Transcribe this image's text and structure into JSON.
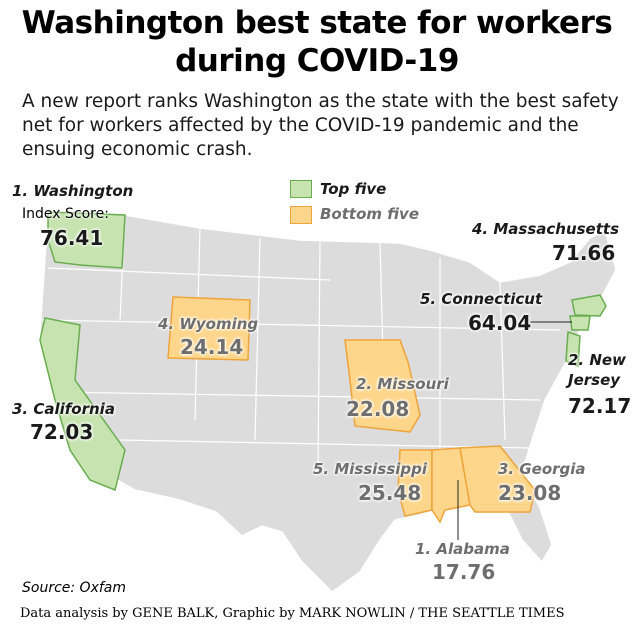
{
  "header": {
    "title": "Washington best state for workers during COVID-19",
    "subtitle": "A new report ranks Washington as the state with the best safety net for workers affected by the COVID-19 pandemic and the ensuing economic crash."
  },
  "legend": [
    {
      "label": "Top five",
      "color": "#c6e3b0",
      "stroke": "#6aad4f",
      "text_color": "#1a1a1a",
      "states": [
        {
          "label": "1. Washington",
          "score_caption": "Index Score:",
          "score": 76.41
        },
        {
          "label": "2. New Jersey",
          "score": 72.17
        },
        {
          "label": "3. California",
          "score": 72.03
        },
        {
          "label": "4. Massachusetts",
          "score": 71.66
        },
        {
          "label": "5. Connecticut",
          "score": 64.04
        }
      ]
    },
    {
      "label": "Bottom five",
      "color": "#fdd68c",
      "stroke": "#eea43a",
      "text_color": "#6e6e6e",
      "states": [
        {
          "label": "1. Alabama",
          "score": 17.76
        },
        {
          "label": "2. Missouri",
          "score": 22.08
        },
        {
          "label": "3. Georgia",
          "score": 23.08
        },
        {
          "label": "4. Wyoming",
          "score": 24.14
        },
        {
          "label": "5. Mississippi",
          "score": 25.48
        }
      ]
    }
  ],
  "footer": {
    "source": "Source: Oxfam",
    "credit": "Data analysis by GENE BALK, Graphic by MARK NOWLIN / THE SEATTLE TIMES"
  }
}
